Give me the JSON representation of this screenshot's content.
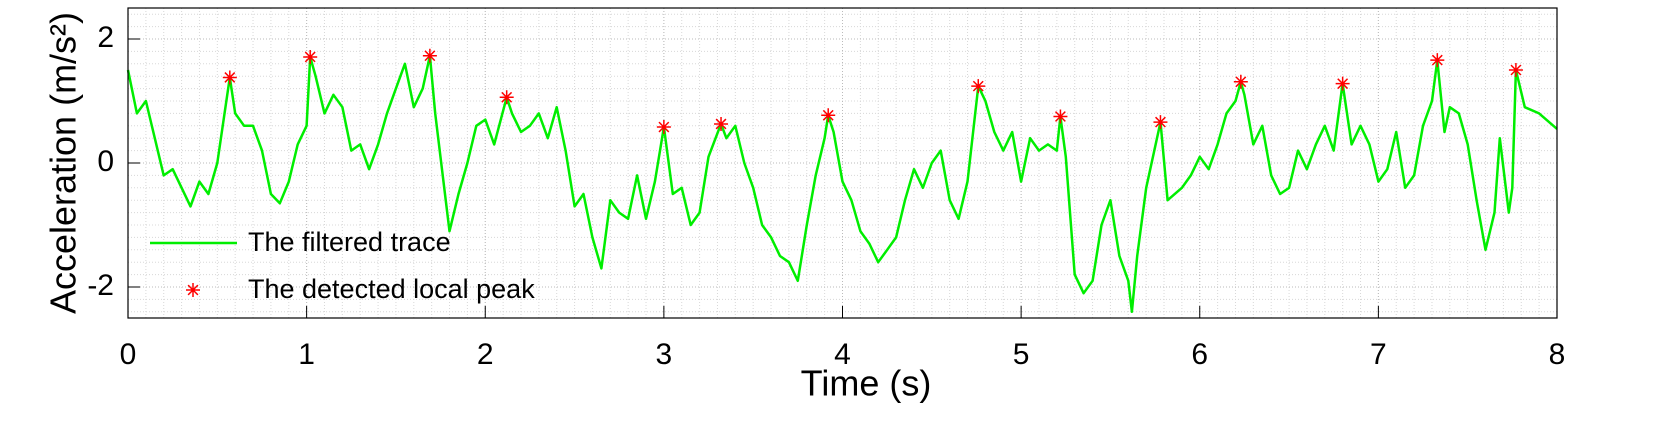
{
  "chart_data": {
    "type": "line",
    "xlabel": "Time (s)",
    "ylabel": "Acceleration (m/s²)",
    "xlim": [
      0,
      8
    ],
    "ylim": [
      -2.5,
      2.5
    ],
    "xticks": [
      0,
      1,
      2,
      3,
      4,
      5,
      6,
      7,
      8
    ],
    "yticks": [
      -2,
      0,
      2
    ],
    "grid": true,
    "minor_grid": true,
    "legend": "lower left",
    "series": [
      {
        "name": "The filtered trace",
        "color": "#00ee00",
        "marker": "none",
        "x": [
          0,
          0.05,
          0.1,
          0.15,
          0.2,
          0.25,
          0.3,
          0.35,
          0.4,
          0.45,
          0.5,
          0.57,
          0.6,
          0.65,
          0.7,
          0.75,
          0.8,
          0.85,
          0.9,
          0.95,
          1.0,
          1.02,
          1.05,
          1.1,
          1.15,
          1.2,
          1.25,
          1.3,
          1.35,
          1.4,
          1.45,
          1.5,
          1.55,
          1.6,
          1.65,
          1.69,
          1.72,
          1.8,
          1.85,
          1.9,
          1.95,
          2.0,
          2.05,
          2.12,
          2.15,
          2.2,
          2.25,
          2.3,
          2.35,
          2.4,
          2.45,
          2.5,
          2.55,
          2.6,
          2.65,
          2.7,
          2.75,
          2.8,
          2.85,
          2.9,
          2.95,
          3.0,
          3.05,
          3.1,
          3.15,
          3.2,
          3.25,
          3.32,
          3.35,
          3.4,
          3.45,
          3.5,
          3.55,
          3.6,
          3.65,
          3.7,
          3.75,
          3.8,
          3.85,
          3.9,
          3.92,
          3.95,
          4.0,
          4.05,
          4.1,
          4.15,
          4.2,
          4.25,
          4.3,
          4.35,
          4.4,
          4.45,
          4.5,
          4.55,
          4.6,
          4.65,
          4.7,
          4.76,
          4.8,
          4.85,
          4.9,
          4.95,
          5.0,
          5.05,
          5.1,
          5.15,
          5.2,
          5.22,
          5.25,
          5.3,
          5.35,
          5.4,
          5.45,
          5.5,
          5.55,
          5.6,
          5.62,
          5.65,
          5.7,
          5.78,
          5.82,
          5.9,
          5.95,
          6.0,
          6.05,
          6.1,
          6.15,
          6.2,
          6.23,
          6.25,
          6.3,
          6.35,
          6.4,
          6.45,
          6.5,
          6.55,
          6.6,
          6.65,
          6.7,
          6.75,
          6.8,
          6.85,
          6.9,
          6.95,
          7.0,
          7.05,
          7.1,
          7.15,
          7.2,
          7.25,
          7.3,
          7.33,
          7.37,
          7.4,
          7.45,
          7.5,
          7.55,
          7.6,
          7.65,
          7.68,
          7.73,
          7.75,
          7.77,
          7.82,
          7.9,
          8.0
        ],
        "values": [
          1.5,
          0.8,
          1.0,
          0.4,
          -0.2,
          -0.1,
          -0.4,
          -0.7,
          -0.3,
          -0.5,
          0.0,
          1.38,
          0.8,
          0.6,
          0.6,
          0.2,
          -0.5,
          -0.65,
          -0.3,
          0.3,
          0.6,
          1.71,
          1.4,
          0.8,
          1.1,
          0.9,
          0.2,
          0.3,
          -0.1,
          0.3,
          0.8,
          1.2,
          1.6,
          0.9,
          1.2,
          1.73,
          0.8,
          -1.1,
          -0.5,
          0.0,
          0.6,
          0.7,
          0.3,
          1.06,
          0.8,
          0.5,
          0.6,
          0.8,
          0.4,
          0.9,
          0.2,
          -0.7,
          -0.5,
          -1.2,
          -1.7,
          -0.6,
          -0.8,
          -0.9,
          -0.2,
          -0.9,
          -0.3,
          0.58,
          -0.5,
          -0.4,
          -1.0,
          -0.8,
          0.1,
          0.63,
          0.4,
          0.6,
          0.0,
          -0.4,
          -1.0,
          -1.2,
          -1.5,
          -1.6,
          -1.9,
          -1.0,
          -0.2,
          0.4,
          0.77,
          0.5,
          -0.3,
          -0.6,
          -1.1,
          -1.3,
          -1.6,
          -1.4,
          -1.2,
          -0.6,
          -0.1,
          -0.4,
          0.0,
          0.2,
          -0.6,
          -0.9,
          -0.3,
          1.24,
          1.0,
          0.5,
          0.2,
          0.5,
          -0.3,
          0.4,
          0.2,
          0.3,
          0.2,
          0.75,
          0.1,
          -1.8,
          -2.1,
          -1.9,
          -1.0,
          -0.6,
          -1.5,
          -1.9,
          -2.4,
          -1.5,
          -0.4,
          0.66,
          -0.6,
          -0.4,
          -0.2,
          0.1,
          -0.1,
          0.3,
          0.8,
          1.0,
          1.31,
          1.1,
          0.3,
          0.6,
          -0.2,
          -0.5,
          -0.4,
          0.2,
          -0.1,
          0.3,
          0.6,
          0.2,
          1.28,
          0.3,
          0.6,
          0.3,
          -0.3,
          -0.1,
          0.5,
          -0.4,
          -0.2,
          0.6,
          1.0,
          1.66,
          0.5,
          0.9,
          0.8,
          0.3,
          -0.6,
          -1.4,
          -0.8,
          0.4,
          -0.8,
          -0.4,
          1.5,
          0.9,
          0.8,
          0.55
        ]
      },
      {
        "name": "The detected local peak",
        "color": "#ff0000",
        "marker": "*",
        "x": [
          0.57,
          1.02,
          1.69,
          2.12,
          3.0,
          3.32,
          3.92,
          4.76,
          5.22,
          5.78,
          6.23,
          6.8,
          7.33,
          7.77
        ],
        "values": [
          1.38,
          1.71,
          1.73,
          1.06,
          0.58,
          0.63,
          0.77,
          1.24,
          0.75,
          0.66,
          1.31,
          1.28,
          1.66,
          1.5
        ]
      }
    ]
  }
}
